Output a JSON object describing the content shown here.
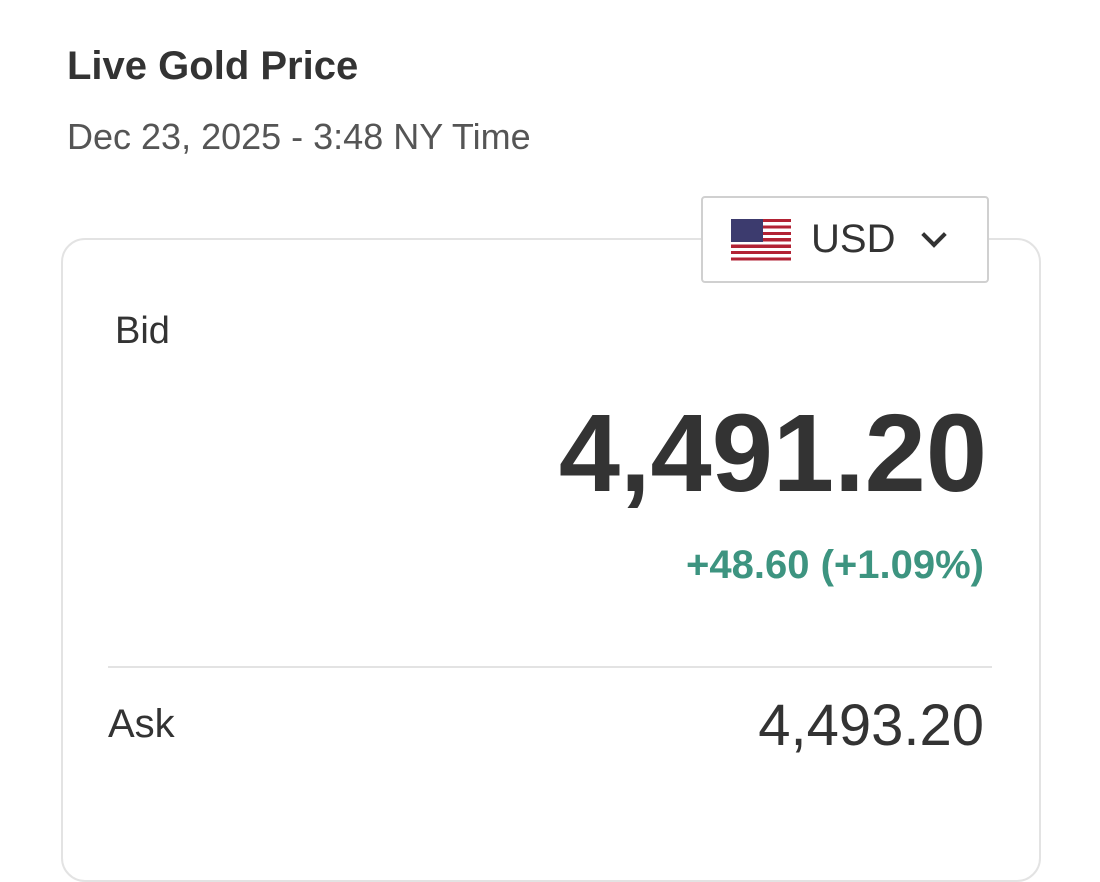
{
  "header": {
    "title": "Live Gold Price",
    "timestamp": "Dec 23, 2025 - 3:48 NY Time"
  },
  "currency": {
    "selected": "USD",
    "icon": "us-flag-icon"
  },
  "bid": {
    "label": "Bid",
    "value": "4,491.20",
    "change": "+48.60 (+1.09%)",
    "change_color": "#3d9480"
  },
  "ask": {
    "label": "Ask",
    "value": "4,493.20"
  }
}
